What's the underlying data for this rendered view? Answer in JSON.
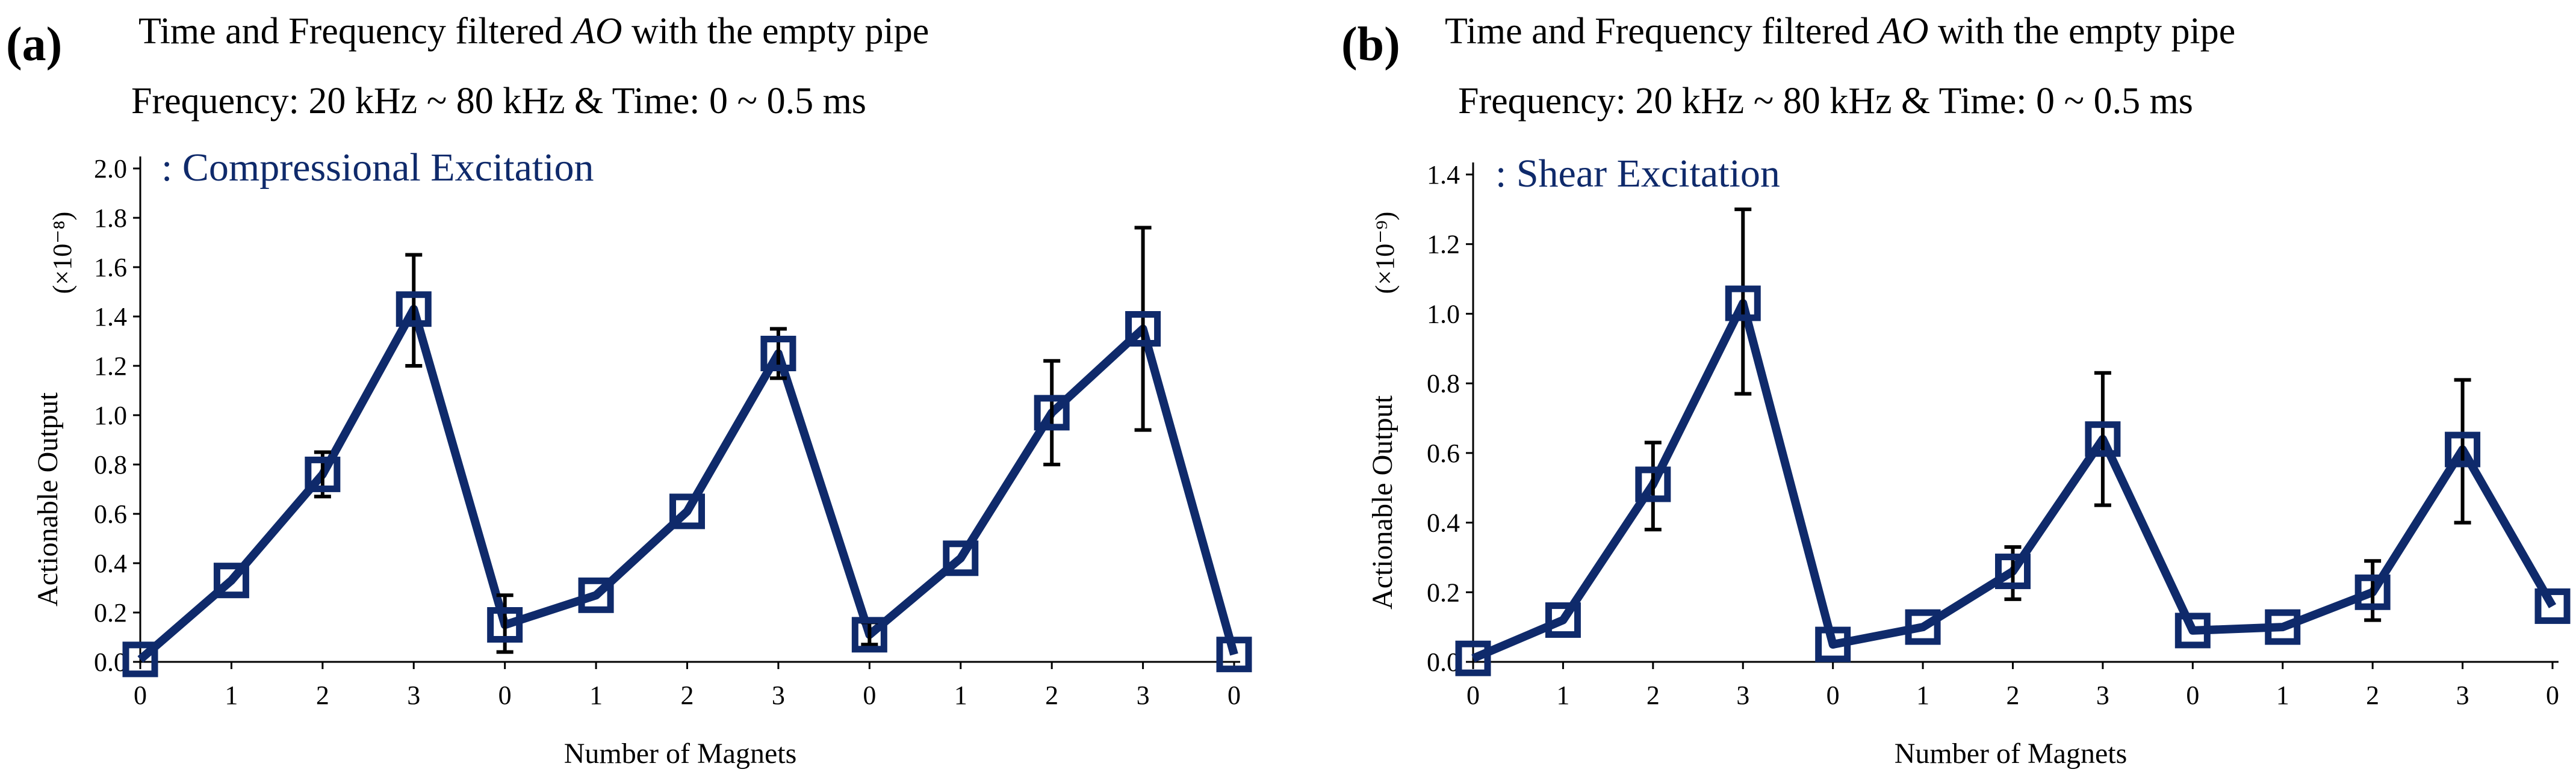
{
  "figure": {
    "line_color": "#0f2a6b",
    "error_color": "#000000",
    "marker_fill": "#ffffff"
  },
  "chart_data": [
    {
      "type": "line",
      "panel_label": "(a)",
      "title_prefix": "Time and Frequency filtered ",
      "title_italic": "AO",
      "title_suffix": " with the empty pipe",
      "subtitle": "Frequency: 20 kHz ~ 80 kHz & Time: 0 ~ 0.5 ms",
      "legend": ": Compressional Excitation",
      "xlabel": "Number of Magnets",
      "ylabel": "Actionable Output",
      "yunit": "(×10⁻⁸)",
      "categories": [
        "0",
        "1",
        "2",
        "3",
        "0",
        "1",
        "2",
        "3",
        "0",
        "1",
        "2",
        "3",
        "0"
      ],
      "yticks": [
        "0.0",
        "0.2",
        "0.4",
        "0.6",
        "0.8",
        "1.0",
        "1.2",
        "1.4",
        "1.6",
        "1.8",
        "2.0"
      ],
      "ylim": [
        0,
        2.0
      ],
      "series": [
        {
          "name": "Compressional Excitation",
          "values": [
            0.01,
            0.33,
            0.76,
            1.43,
            0.15,
            0.27,
            0.61,
            1.25,
            0.11,
            0.42,
            1.01,
            1.35,
            0.03
          ],
          "error_low": [
            null,
            null,
            0.67,
            1.2,
            0.04,
            null,
            null,
            1.15,
            0.07,
            null,
            0.8,
            0.94,
            null
          ],
          "error_high": [
            null,
            null,
            0.85,
            1.65,
            0.27,
            null,
            null,
            1.35,
            0.16,
            null,
            1.22,
            1.76,
            null
          ]
        }
      ]
    },
    {
      "type": "line",
      "panel_label": "(b)",
      "title_prefix": "Time and Frequency filtered ",
      "title_italic": "AO",
      "title_suffix": " with the empty pipe",
      "subtitle": "Frequency: 20 kHz ~ 80 kHz & Time: 0 ~ 0.5 ms",
      "legend": ": Shear Excitation",
      "xlabel": "Number of Magnets",
      "ylabel": "Actionable Output",
      "yunit": "(×10⁻⁹)",
      "categories": [
        "0",
        "1",
        "2",
        "3",
        "0",
        "1",
        "2",
        "3",
        "0",
        "1",
        "2",
        "3",
        "0"
      ],
      "yticks": [
        "0.0",
        "0.2",
        "0.4",
        "0.6",
        "0.8",
        "1.0",
        "1.2",
        "1.4"
      ],
      "ylim": [
        0,
        1.4
      ],
      "series": [
        {
          "name": "Shear Excitation",
          "values": [
            0.01,
            0.12,
            0.51,
            1.03,
            0.05,
            0.1,
            0.26,
            0.64,
            0.09,
            0.1,
            0.2,
            0.61,
            0.16
          ],
          "error_low": [
            null,
            null,
            0.38,
            0.77,
            null,
            null,
            0.18,
            0.45,
            null,
            null,
            0.12,
            0.4,
            null
          ],
          "error_high": [
            null,
            null,
            0.63,
            1.3,
            null,
            null,
            0.33,
            0.83,
            null,
            null,
            0.29,
            0.81,
            null
          ]
        }
      ]
    }
  ]
}
